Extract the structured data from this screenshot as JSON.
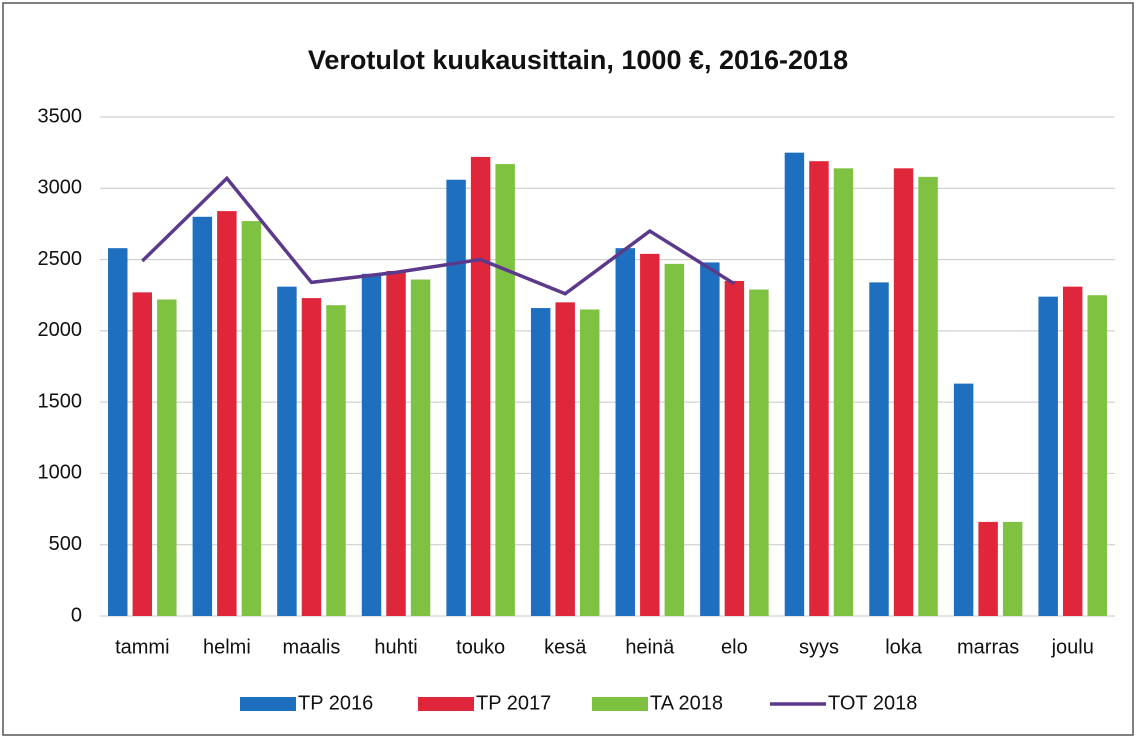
{
  "chart_data": {
    "type": "bar",
    "title": "Verotulot  kuukausittain, 1000 €, 2016-2018",
    "categories": [
      "tammi",
      "helmi",
      "maalis",
      "huhti",
      "touko",
      "kesä",
      "heinä",
      "elo",
      "syys",
      "loka",
      "marras",
      "joulu"
    ],
    "series": [
      {
        "name": "TP 2016",
        "type": "bar",
        "color": "#1f6fc0",
        "values": [
          2580,
          2800,
          2310,
          2400,
          3060,
          2160,
          2580,
          2480,
          3250,
          2340,
          1630,
          2240
        ]
      },
      {
        "name": "TP 2017",
        "type": "bar",
        "color": "#e0263a",
        "values": [
          2270,
          2840,
          2230,
          2420,
          3220,
          2200,
          2540,
          2350,
          3190,
          3140,
          660,
          2310
        ]
      },
      {
        "name": "TA 2018",
        "type": "bar",
        "color": "#7fc241",
        "values": [
          2220,
          2770,
          2180,
          2360,
          3170,
          2150,
          2470,
          2290,
          3140,
          3080,
          660,
          2250
        ]
      },
      {
        "name": "TOT 2018",
        "type": "line",
        "color": "#5b3a8c",
        "values": [
          2490,
          3070,
          2340,
          2410,
          2500,
          2260,
          2700,
          2330,
          null,
          null,
          null,
          null
        ]
      }
    ],
    "ylim": [
      0,
      3500
    ],
    "yticks": [
      0,
      500,
      1000,
      1500,
      2000,
      2500,
      3000,
      3500
    ],
    "grid": true,
    "legend": "bottom"
  }
}
